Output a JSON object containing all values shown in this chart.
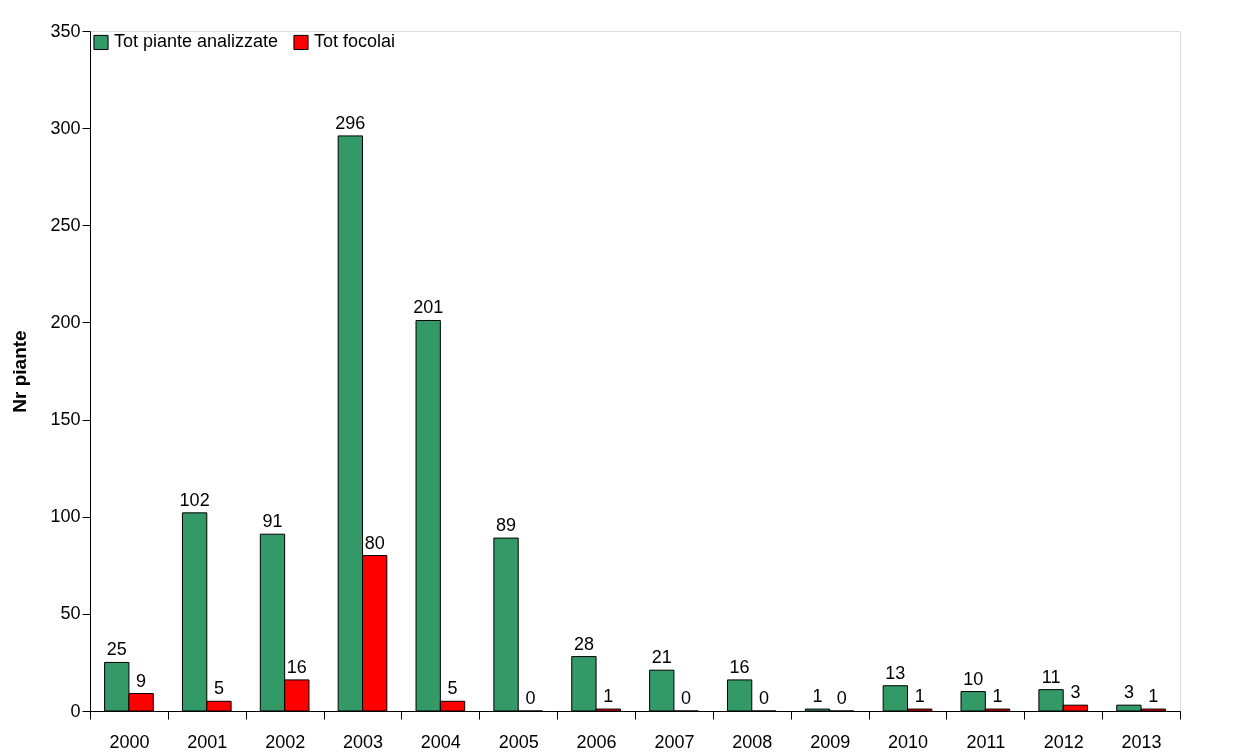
{
  "chart_data": {
    "type": "bar",
    "ylabel": "Nr piante",
    "categories": [
      "2000",
      "2001",
      "2002",
      "2003",
      "2004",
      "2005",
      "2006",
      "2007",
      "2008",
      "2009",
      "2010",
      "2011",
      "2012",
      "2013"
    ],
    "series": [
      {
        "name": "Tot piante analizzate",
        "color": "#339966",
        "values": [
          25,
          102,
          91,
          296,
          201,
          89,
          28,
          21,
          16,
          1,
          13,
          10,
          11,
          3
        ]
      },
      {
        "name": "Tot focolai",
        "color": "#ff0000",
        "values": [
          9,
          5,
          16,
          80,
          5,
          0,
          1,
          0,
          0,
          0,
          1,
          1,
          3,
          1
        ]
      }
    ],
    "ylim": [
      0,
      350
    ],
    "yticks": [
      0,
      50,
      100,
      150,
      200,
      250,
      300,
      350
    ],
    "data_labels": true,
    "grid": false,
    "legend": "top left"
  }
}
